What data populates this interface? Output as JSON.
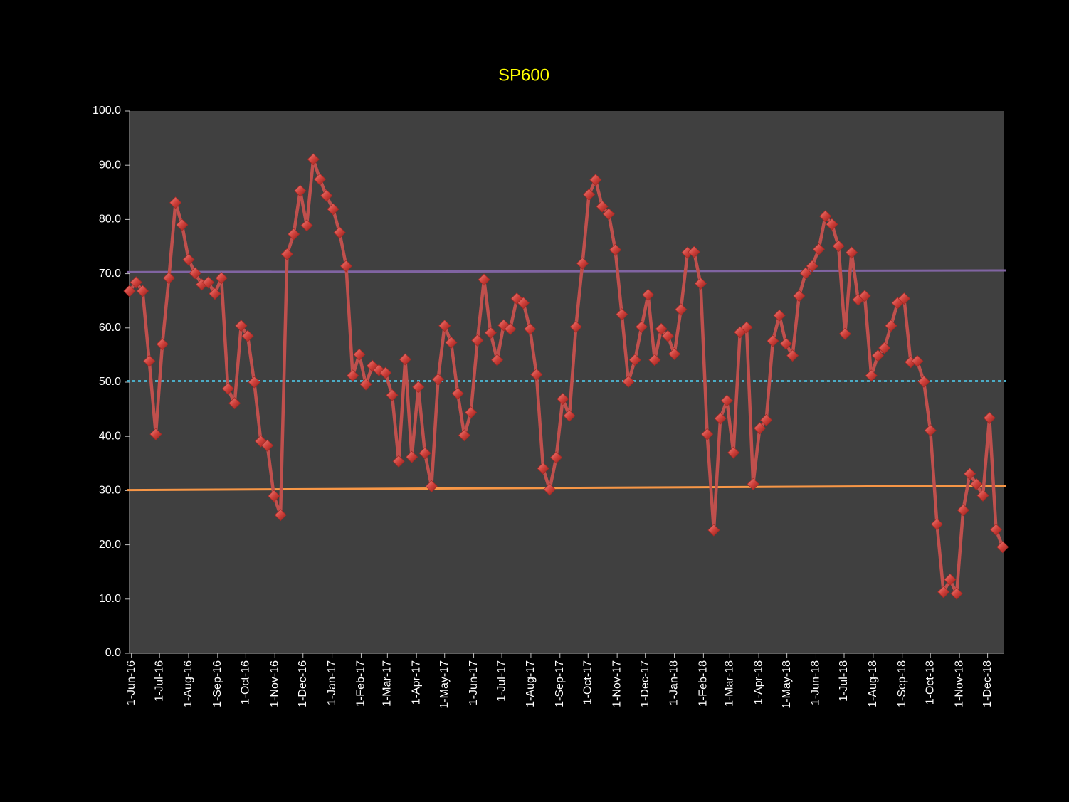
{
  "chart_data": {
    "type": "line",
    "title": "SP600",
    "x": [
      "2016-05-30",
      "2016-06-06",
      "2016-06-13",
      "2016-06-20",
      "2016-06-27",
      "2016-07-04",
      "2016-07-11",
      "2016-07-18",
      "2016-07-25",
      "2016-08-01",
      "2016-08-08",
      "2016-08-15",
      "2016-08-22",
      "2016-08-29",
      "2016-09-05",
      "2016-09-12",
      "2016-09-19",
      "2016-09-26",
      "2016-10-03",
      "2016-10-10",
      "2016-10-17",
      "2016-10-24",
      "2016-10-31",
      "2016-11-07",
      "2016-11-14",
      "2016-11-21",
      "2016-11-28",
      "2016-12-05",
      "2016-12-12",
      "2016-12-19",
      "2016-12-26",
      "2017-01-02",
      "2017-01-09",
      "2017-01-16",
      "2017-01-23",
      "2017-01-30",
      "2017-02-06",
      "2017-02-13",
      "2017-02-20",
      "2017-02-27",
      "2017-03-06",
      "2017-03-13",
      "2017-03-20",
      "2017-03-27",
      "2017-04-03",
      "2017-04-10",
      "2017-04-17",
      "2017-04-24",
      "2017-05-01",
      "2017-05-08",
      "2017-05-15",
      "2017-05-22",
      "2017-05-29",
      "2017-06-05",
      "2017-06-12",
      "2017-06-19",
      "2017-06-26",
      "2017-07-03",
      "2017-07-10",
      "2017-07-17",
      "2017-07-24",
      "2017-07-31",
      "2017-08-07",
      "2017-08-14",
      "2017-08-21",
      "2017-08-28",
      "2017-09-04",
      "2017-09-11",
      "2017-09-18",
      "2017-09-25",
      "2017-10-02",
      "2017-10-09",
      "2017-10-16",
      "2017-10-23",
      "2017-10-30",
      "2017-11-06",
      "2017-11-13",
      "2017-11-20",
      "2017-11-27",
      "2017-12-04",
      "2017-12-11",
      "2017-12-18",
      "2017-12-25",
      "2018-01-01",
      "2018-01-08",
      "2018-01-15",
      "2018-01-22",
      "2018-01-29",
      "2018-02-05",
      "2018-02-12",
      "2018-02-19",
      "2018-02-26",
      "2018-03-05",
      "2018-03-12",
      "2018-03-19",
      "2018-03-26",
      "2018-04-02",
      "2018-04-09",
      "2018-04-16",
      "2018-04-23",
      "2018-04-30",
      "2018-05-07",
      "2018-05-14",
      "2018-05-21",
      "2018-05-28",
      "2018-06-04",
      "2018-06-11",
      "2018-06-18",
      "2018-06-25",
      "2018-07-02",
      "2018-07-09",
      "2018-07-16",
      "2018-07-23",
      "2018-07-30",
      "2018-08-06",
      "2018-08-13",
      "2018-08-20",
      "2018-08-27",
      "2018-09-03",
      "2018-09-10",
      "2018-09-17",
      "2018-09-24",
      "2018-10-01",
      "2018-10-08",
      "2018-10-15",
      "2018-10-22",
      "2018-10-29",
      "2018-11-05",
      "2018-11-12",
      "2018-11-19",
      "2018-11-26",
      "2018-12-03",
      "2018-12-10",
      "2018-12-17"
    ],
    "series": [
      {
        "color": "#c0504d",
        "values": [
          66.8,
          68.4,
          66.8,
          53.9,
          40.4,
          57.0,
          69.2,
          83.1,
          79.0,
          72.6,
          70.1,
          68.0,
          68.4,
          66.3,
          69.2,
          48.8,
          46.1,
          60.4,
          58.5,
          50.0,
          39.1,
          38.3,
          29.0,
          25.5,
          73.6,
          77.3,
          85.3,
          78.9,
          91.1,
          87.4,
          84.4,
          81.9,
          77.6,
          71.4,
          51.2,
          55.1,
          49.6,
          53.0,
          52.2,
          51.7,
          47.6,
          35.4,
          54.2,
          36.2,
          49.1,
          36.9,
          30.8,
          50.5,
          60.4,
          57.3,
          47.9,
          40.2,
          44.4,
          57.7,
          68.9,
          59.1,
          54.1,
          60.5,
          59.8,
          65.4,
          64.6,
          59.8,
          51.4,
          34.1,
          30.2,
          36.1,
          46.9,
          43.8,
          60.2,
          71.9,
          84.6,
          87.3,
          82.4,
          81.0,
          74.4,
          62.5,
          50.1,
          54.1,
          60.2,
          66.1,
          54.1,
          59.8,
          58.5,
          55.2,
          63.4,
          73.9,
          74.0,
          68.2,
          40.4,
          22.7,
          43.3,
          46.6,
          37.0,
          59.2,
          60.1,
          31.2,
          41.5,
          43.0,
          57.6,
          62.3,
          57.1,
          54.9,
          65.9,
          70.1,
          71.4,
          74.5,
          80.6,
          79.1,
          75.1,
          58.9,
          73.9,
          65.2,
          65.9,
          51.2,
          54.9,
          56.3,
          60.4,
          64.6,
          65.4,
          53.7,
          53.9,
          50.1,
          41.1,
          23.8,
          11.3,
          13.6,
          11.0,
          26.4,
          33.1,
          31.2,
          29.1,
          43.4,
          22.8,
          19.6
        ]
      }
    ],
    "reference_lines": [
      {
        "values": [
          70.3,
          70.6
        ],
        "color": "#8064a2",
        "dashed": false
      },
      {
        "values": [
          50.2,
          50.2
        ],
        "color": "#4bacc6",
        "dashed": true
      },
      {
        "values": [
          30.1,
          30.9
        ],
        "color": "#f79646",
        "dashed": false
      }
    ],
    "xlim": [
      "2016-05-30",
      "2018-12-18"
    ],
    "xticks": [
      {
        "value": "2016-06-01",
        "label": "1-Jun-16"
      },
      {
        "value": "2016-07-01",
        "label": "1-Jul-16"
      },
      {
        "value": "2016-08-01",
        "label": "1-Aug-16"
      },
      {
        "value": "2016-09-01",
        "label": "1-Sep-16"
      },
      {
        "value": "2016-10-01",
        "label": "1-Oct-16"
      },
      {
        "value": "2016-11-01",
        "label": "1-Nov-16"
      },
      {
        "value": "2016-12-01",
        "label": "1-Dec-16"
      },
      {
        "value": "2017-01-01",
        "label": "1-Jan-17"
      },
      {
        "value": "2017-02-01",
        "label": "1-Feb-17"
      },
      {
        "value": "2017-03-01",
        "label": "1-Mar-17"
      },
      {
        "value": "2017-04-01",
        "label": "1-Apr-17"
      },
      {
        "value": "2017-05-01",
        "label": "1-May-17"
      },
      {
        "value": "2017-06-01",
        "label": "1-Jun-17"
      },
      {
        "value": "2017-07-01",
        "label": "1-Jul-17"
      },
      {
        "value": "2017-08-01",
        "label": "1-Aug-17"
      },
      {
        "value": "2017-09-01",
        "label": "1-Sep-17"
      },
      {
        "value": "2017-10-01",
        "label": "1-Oct-17"
      },
      {
        "value": "2017-11-01",
        "label": "1-Nov-17"
      },
      {
        "value": "2017-12-01",
        "label": "1-Dec-17"
      },
      {
        "value": "2018-01-01",
        "label": "1-Jan-18"
      },
      {
        "value": "2018-02-01",
        "label": "1-Feb-18"
      },
      {
        "value": "2018-03-01",
        "label": "1-Mar-18"
      },
      {
        "value": "2018-04-01",
        "label": "1-Apr-18"
      },
      {
        "value": "2018-05-01",
        "label": "1-May-18"
      },
      {
        "value": "2018-06-01",
        "label": "1-Jun-18"
      },
      {
        "value": "2018-07-01",
        "label": "1-Jul-18"
      },
      {
        "value": "2018-08-01",
        "label": "1-Aug-18"
      },
      {
        "value": "2018-09-01",
        "label": "1-Sep-18"
      },
      {
        "value": "2018-10-01",
        "label": "1-Oct-18"
      },
      {
        "value": "2018-11-01",
        "label": "1-Nov-18"
      },
      {
        "value": "2018-12-01",
        "label": "1-Dec-18"
      }
    ],
    "ylim": [
      0,
      100
    ],
    "yticks": [
      {
        "value": 0,
        "label": "0.0"
      },
      {
        "value": 10,
        "label": "10.0"
      },
      {
        "value": 20,
        "label": "20.0"
      },
      {
        "value": 30,
        "label": "30.0"
      },
      {
        "value": 40,
        "label": "40.0"
      },
      {
        "value": 50,
        "label": "50.0"
      },
      {
        "value": 60,
        "label": "60.0"
      },
      {
        "value": 70,
        "label": "70.0"
      },
      {
        "value": 80,
        "label": "80.0"
      },
      {
        "value": 90,
        "label": "90.0"
      },
      {
        "value": 100,
        "label": "100.0"
      }
    ],
    "plot_background": "#404040",
    "marker": "diamond"
  }
}
